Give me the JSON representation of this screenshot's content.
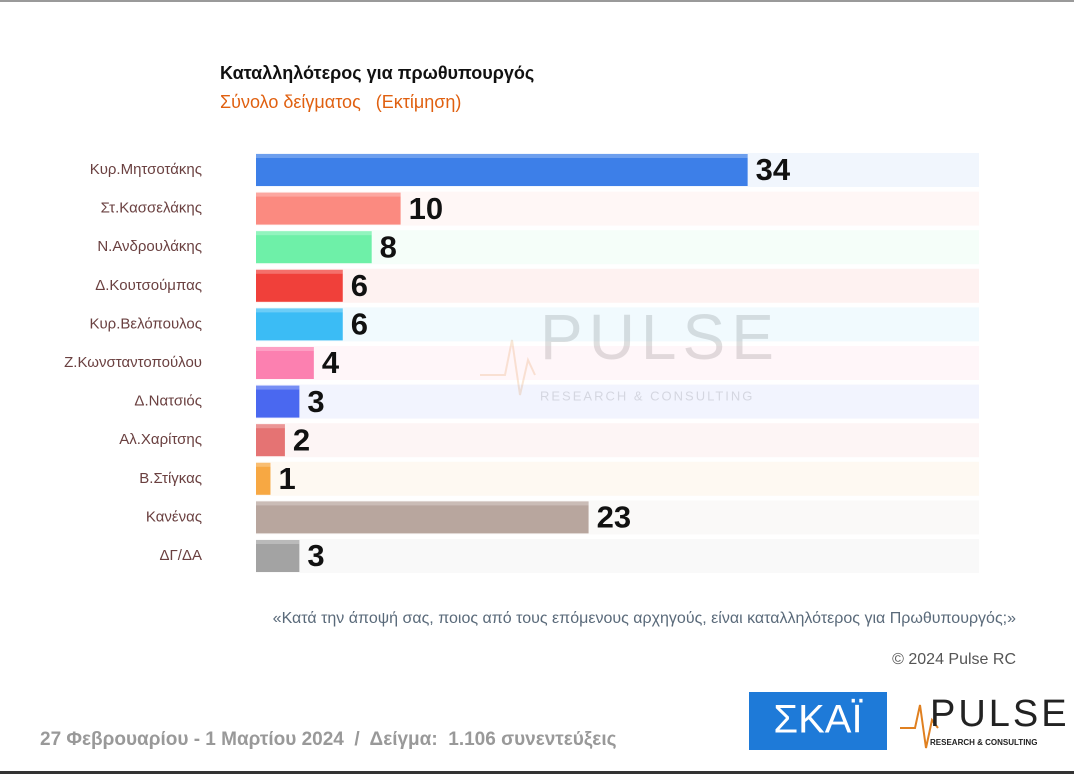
{
  "chart_data": {
    "type": "hbar",
    "title": "Καταλληλότερος για πρωθυπουργός",
    "subtitle": "Σύνολο δείγματος   (Εκτίμηση)",
    "categories": [
      "Κυρ.Μητσοτάκης",
      "Στ.Κασσελάκης",
      "Ν.Ανδρουλάκης",
      "Δ.Κουτσούμπας",
      "Κυρ.Βελόπουλος",
      "Ζ.Κωνσταντοπούλου",
      "Δ.Νατσιός",
      "Αλ.Χαρίτσης",
      "Β.Στίγκας",
      "Κανένας",
      "ΔΓ/ΔΑ"
    ],
    "values": [
      34,
      10,
      8,
      6,
      6,
      4,
      3,
      2,
      1,
      23,
      3
    ],
    "colors": [
      "#3d7fe8",
      "#fb8a80",
      "#6ef0a8",
      "#f0403a",
      "#3bbcf5",
      "#fc80b0",
      "#4a68f0",
      "#e57373",
      "#f7a843",
      "#b8a69e",
      "#a3a3a3"
    ],
    "xlim": [
      0,
      50
    ]
  },
  "question": "«Κατά την άποψή σας, ποιος από τους επόμενους αρχηγούς, είναι καταλληλότερος για Πρωθυπουργός;»",
  "copyright": "© 2024 Pulse RC",
  "footer": "27 Φεβρουαρίου - 1 Μαρτίου 2024  /  Δείγμα:  1.106 συνεντεύξεις",
  "logos": {
    "skai": "ΣΚΑΪ",
    "pulse": "PULSE",
    "pulse_sub": "RESEARCH & CONSULTING"
  },
  "watermark": {
    "name": "PULSE",
    "sub": "RESEARCH & CONSULTING"
  }
}
